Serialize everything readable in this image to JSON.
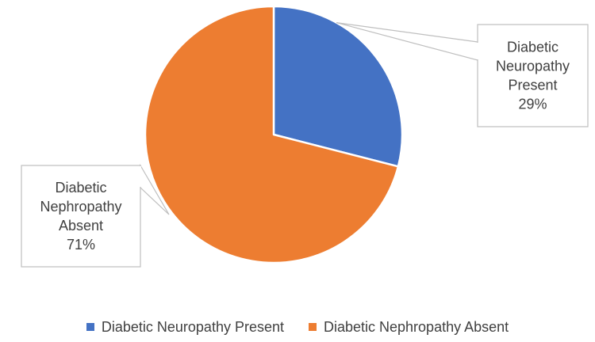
{
  "chart_data": {
    "type": "pie",
    "title": "",
    "categories": [
      "Diabetic Neuropathy Present",
      "Diabetic Nephropathy Absent"
    ],
    "values": [
      29,
      71
    ],
    "value_unit": "%",
    "colors": [
      "#4472C4",
      "#ED7D31"
    ],
    "slice_label_lines": [
      [
        "Diabetic",
        "Neuropathy",
        "Present",
        "29%"
      ],
      [
        "Diabetic",
        "Nephropathy",
        "Absent",
        "71%"
      ]
    ],
    "legend": {
      "position": "bottom",
      "entries": [
        "Diabetic Neuropathy Present",
        "Diabetic Nephropathy Absent"
      ]
    }
  }
}
